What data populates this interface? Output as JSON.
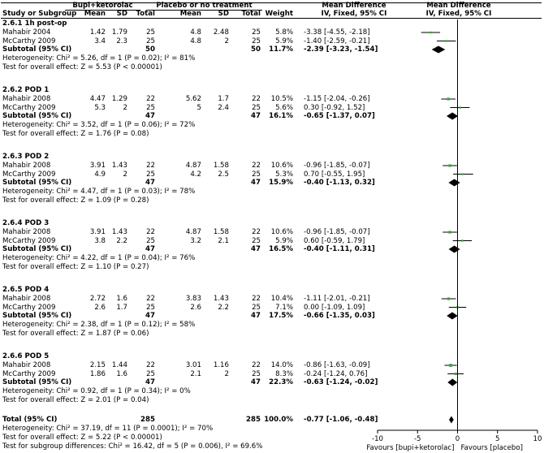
{
  "header": {
    "study_or_subgroup": "Study or Subgroup",
    "exp_group": "Bupi+ketorolac",
    "ctrl_group": "Placebo or no treatment",
    "mean": "Mean",
    "sd": "SD",
    "total": "Total",
    "weight": "Weight",
    "md_title": "Mean Difference",
    "md_method": "IV, Fixed, 95% CI"
  },
  "axis": {
    "ticks": [
      "-10",
      "-5",
      "0",
      "5",
      "10"
    ],
    "favours_left": "Favours [bupi+ketorolac]",
    "favours_right": "Favours [placebo]"
  },
  "colors": {
    "study_square": "#3aa63a",
    "diamond": "#000000",
    "ci_line": "#000000"
  },
  "subgroups": [
    {
      "title": "2.6.1 1h post-op",
      "studies": [
        {
          "name": "Mahabir 2004",
          "m1": "1.42",
          "sd1": "1.79",
          "n1": "25",
          "m2": "4.8",
          "sd2": "2.48",
          "n2": "25",
          "weight": "5.8%",
          "ci_text": "-3.38 [-4.55, -2.18]"
        },
        {
          "name": "McCarthy 2009",
          "m1": "3.4",
          "sd1": "2.3",
          "n1": "25",
          "m2": "4.8",
          "sd2": "2",
          "n2": "25",
          "weight": "5.9%",
          "ci_text": "-1.40 [-2.59, -0.21]"
        }
      ],
      "subtotal": {
        "label": "Subtotal (95% CI)",
        "n1": "50",
        "n2": "50",
        "weight": "11.7%",
        "ci_text": "-2.39 [-3.23, -1.54]"
      },
      "heterogeneity": "Heterogeneity: Chi² = 5.26, df = 1 (P = 0.02); I² = 81%",
      "overall_test": "Test for overall effect: Z = 5.53 (P < 0.00001)"
    },
    {
      "title": "2.6.2 POD 1",
      "studies": [
        {
          "name": "Mahabir 2008",
          "m1": "4.47",
          "sd1": "1.29",
          "n1": "22",
          "m2": "5.62",
          "sd2": "1.7",
          "n2": "22",
          "weight": "10.5%",
          "ci_text": "-1.15 [-2.04, -0.26]"
        },
        {
          "name": "McCarthy 2009",
          "m1": "5.3",
          "sd1": "2",
          "n1": "25",
          "m2": "5",
          "sd2": "2.4",
          "n2": "25",
          "weight": "5.6%",
          "ci_text": "0.30 [-0.92, 1.52]"
        }
      ],
      "subtotal": {
        "label": "Subtotal (95% CI)",
        "n1": "47",
        "n2": "47",
        "weight": "16.1%",
        "ci_text": "-0.65 [-1.37, 0.07]"
      },
      "heterogeneity": "Heterogeneity: Chi² = 3.52, df = 1 (P = 0.06); I² = 72%",
      "overall_test": "Test for overall effect: Z = 1.76 (P = 0.08)"
    },
    {
      "title": "2.6.3 POD 2",
      "studies": [
        {
          "name": "Mahabir 2008",
          "m1": "3.91",
          "sd1": "1.43",
          "n1": "22",
          "m2": "4.87",
          "sd2": "1.58",
          "n2": "22",
          "weight": "10.6%",
          "ci_text": "-0.96 [-1.85, -0.07]"
        },
        {
          "name": "McCarthy 2009",
          "m1": "4.9",
          "sd1": "2",
          "n1": "25",
          "m2": "4.2",
          "sd2": "2.5",
          "n2": "25",
          "weight": "5.3%",
          "ci_text": "0.70 [-0.55, 1.95]"
        }
      ],
      "subtotal": {
        "label": "Subtotal (95% CI)",
        "n1": "47",
        "n2": "47",
        "weight": "15.9%",
        "ci_text": "-0.40 [-1.13, 0.32]"
      },
      "heterogeneity": "Heterogeneity: Chi² = 4.47, df = 1 (P = 0.03); I² = 78%",
      "overall_test": "Test for overall effect: Z = 1.09 (P = 0.28)"
    },
    {
      "title": "2.6.4 POD 3",
      "studies": [
        {
          "name": "Mahabir 2008",
          "m1": "3.91",
          "sd1": "1.43",
          "n1": "22",
          "m2": "4.87",
          "sd2": "1.58",
          "n2": "22",
          "weight": "10.6%",
          "ci_text": "-0.96 [-1.85, -0.07]"
        },
        {
          "name": "McCarthy 2009",
          "m1": "3.8",
          "sd1": "2.2",
          "n1": "25",
          "m2": "3.2",
          "sd2": "2.1",
          "n2": "25",
          "weight": "5.9%",
          "ci_text": "0.60 [-0.59, 1.79]"
        }
      ],
      "subtotal": {
        "label": "Subtotal (95% CI)",
        "n1": "47",
        "n2": "47",
        "weight": "16.5%",
        "ci_text": "-0.40 [-1.11, 0.31]"
      },
      "heterogeneity": "Heterogeneity: Chi² = 4.22, df = 1 (P = 0.04); I² = 76%",
      "overall_test": "Test for overall effect: Z = 1.10 (P = 0.27)"
    },
    {
      "title": "2.6.5 POD 4",
      "studies": [
        {
          "name": "Mahabir 2008",
          "m1": "2.72",
          "sd1": "1.6",
          "n1": "22",
          "m2": "3.83",
          "sd2": "1.43",
          "n2": "22",
          "weight": "10.4%",
          "ci_text": "-1.11 [-2.01, -0.21]"
        },
        {
          "name": "McCarthy 2009",
          "m1": "2.6",
          "sd1": "1.7",
          "n1": "25",
          "m2": "2.6",
          "sd2": "2.2",
          "n2": "25",
          "weight": "7.1%",
          "ci_text": "0.00 [-1.09, 1.09]"
        }
      ],
      "subtotal": {
        "label": "Subtotal (95% CI)",
        "n1": "47",
        "n2": "47",
        "weight": "17.5%",
        "ci_text": "-0.66 [-1.35, 0.03]"
      },
      "heterogeneity": "Heterogeneity: Chi² = 2.38, df = 1 (P = 0.12); I² = 58%",
      "overall_test": "Test for overall effect: Z = 1.87 (P = 0.06)"
    },
    {
      "title": "2.6.6 POD 5",
      "studies": [
        {
          "name": "Mahabir 2008",
          "m1": "2.15",
          "sd1": "1.44",
          "n1": "22",
          "m2": "3.01",
          "sd2": "1.16",
          "n2": "22",
          "weight": "14.0%",
          "ci_text": "-0.86 [-1.63, -0.09]"
        },
        {
          "name": "McCarthy 2009",
          "m1": "1.86",
          "sd1": "1.6",
          "n1": "25",
          "m2": "2.1",
          "sd2": "2",
          "n2": "25",
          "weight": "8.3%",
          "ci_text": "-0.24 [-1.24, 0.76]"
        }
      ],
      "subtotal": {
        "label": "Subtotal (95% CI)",
        "n1": "47",
        "n2": "47",
        "weight": "22.3%",
        "ci_text": "-0.63 [-1.24, -0.02]"
      },
      "heterogeneity": "Heterogeneity: Chi² = 0.92, df = 1 (P = 0.34); I² = 0%",
      "overall_test": "Test for overall effect: Z = 2.01 (P = 0.04)"
    }
  ],
  "total": {
    "label": "Total (95% CI)",
    "n1": "285",
    "n2": "285",
    "weight": "100.0%",
    "ci_text": "-0.77 [-1.06, -0.48]",
    "heterogeneity": "Heterogeneity: Chi² = 37.19, df = 11 (P = 0.0001); I² = 70%",
    "overall_test": "Test for overall effect: Z = 5.22 (P < 0.00001)",
    "subgroup_test": "Test for subgroup differences: Chi² = 16.42, df = 5 (P = 0.006), I² = 69.6%"
  },
  "chart_data": {
    "type": "forest",
    "measure": "Mean Difference, IV, Fixed, 95% CI",
    "xlim": [
      -10,
      10
    ],
    "xticks": [
      -10,
      -5,
      0,
      5,
      10
    ],
    "studies": [
      {
        "subgroup": 0,
        "md": -3.38,
        "lo": -4.55,
        "hi": -2.18,
        "weight": 5.8
      },
      {
        "subgroup": 0,
        "md": -1.4,
        "lo": -2.59,
        "hi": -0.21,
        "weight": 5.9
      },
      {
        "subgroup": 1,
        "md": -1.15,
        "lo": -2.04,
        "hi": -0.26,
        "weight": 10.5
      },
      {
        "subgroup": 1,
        "md": 0.3,
        "lo": -0.92,
        "hi": 1.52,
        "weight": 5.6
      },
      {
        "subgroup": 2,
        "md": -0.96,
        "lo": -1.85,
        "hi": -0.07,
        "weight": 10.6
      },
      {
        "subgroup": 2,
        "md": 0.7,
        "lo": -0.55,
        "hi": 1.95,
        "weight": 5.3
      },
      {
        "subgroup": 3,
        "md": -0.96,
        "lo": -1.85,
        "hi": -0.07,
        "weight": 10.6
      },
      {
        "subgroup": 3,
        "md": 0.6,
        "lo": -0.59,
        "hi": 1.79,
        "weight": 5.9
      },
      {
        "subgroup": 4,
        "md": -1.11,
        "lo": -2.01,
        "hi": -0.21,
        "weight": 10.4
      },
      {
        "subgroup": 4,
        "md": 0.0,
        "lo": -1.09,
        "hi": 1.09,
        "weight": 7.1
      },
      {
        "subgroup": 5,
        "md": -0.86,
        "lo": -1.63,
        "hi": -0.09,
        "weight": 14.0
      },
      {
        "subgroup": 5,
        "md": -0.24,
        "lo": -1.24,
        "hi": 0.76,
        "weight": 8.3
      }
    ],
    "subtotals": [
      {
        "subgroup": 0,
        "md": -2.39,
        "lo": -3.23,
        "hi": -1.54
      },
      {
        "subgroup": 1,
        "md": -0.65,
        "lo": -1.37,
        "hi": 0.07
      },
      {
        "subgroup": 2,
        "md": -0.4,
        "lo": -1.13,
        "hi": 0.32
      },
      {
        "subgroup": 3,
        "md": -0.4,
        "lo": -1.11,
        "hi": 0.31
      },
      {
        "subgroup": 4,
        "md": -0.66,
        "lo": -1.35,
        "hi": 0.03
      },
      {
        "subgroup": 5,
        "md": -0.63,
        "lo": -1.24,
        "hi": -0.02
      }
    ],
    "overall": {
      "md": -0.77,
      "lo": -1.06,
      "hi": -0.48
    }
  }
}
